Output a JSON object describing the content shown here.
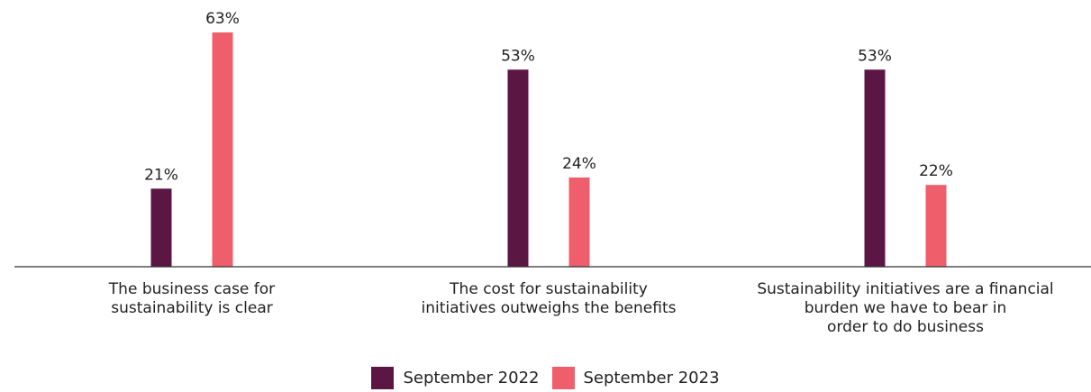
{
  "chart_data": {
    "type": "bar",
    "categories": [
      [
        "The business case for",
        "sustainability is clear"
      ],
      [
        "The cost for sustainability",
        "initiatives outweighs the benefits"
      ],
      [
        "Sustainability initiatives are a financial",
        "burden we have to bear in",
        "order to do business"
      ]
    ],
    "series": [
      {
        "name": "September 2022",
        "values": [
          21,
          53,
          53
        ],
        "color": "#5c1644"
      },
      {
        "name": "September 2023",
        "values": [
          63,
          24,
          22
        ],
        "color": "#ef5f6b"
      }
    ],
    "value_suffix": "%",
    "ylim": [
      0,
      63
    ],
    "grid": false,
    "legend_placement": "bottom-center"
  }
}
